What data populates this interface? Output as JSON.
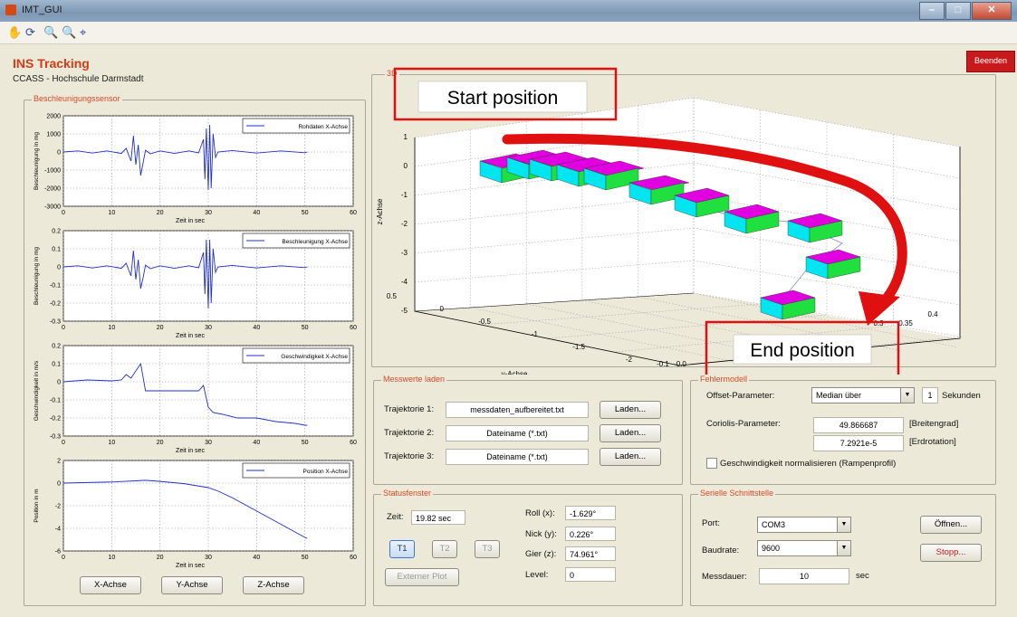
{
  "window": {
    "title": "IMT_GUI",
    "buttons": [
      "–",
      "□",
      "✕"
    ]
  },
  "toolbar": {
    "tools": [
      "pan-tool",
      "rotate-tool",
      "zoom-in-tool",
      "zoom-out-tool",
      "data-cursor-tool"
    ]
  },
  "app": {
    "title": "INS Tracking",
    "subtitle": "CCASS - Hochschule Darmstadt",
    "beenden_label": "Beenden"
  },
  "sensor_panel": {
    "label": "Beschleunigungssensor",
    "buttons": [
      "X-Achse",
      "Y-Achse",
      "Z-Achse"
    ]
  },
  "chart_data": [
    {
      "type": "line",
      "legend": "Rohdaten X-Achse",
      "xlabel": "Zeit in sec",
      "ylabel": "Beschleunigung in mg",
      "xlim": [
        0,
        60
      ],
      "ylim": [
        -3000,
        2000
      ],
      "xticks": [
        0,
        10,
        20,
        30,
        40,
        50,
        60
      ],
      "yticks": [
        2000,
        1000,
        0,
        -1000,
        -2000,
        -3000
      ],
      "grid": true,
      "x": [
        0,
        3,
        6,
        9,
        12,
        13,
        14,
        14.5,
        15,
        15.5,
        16,
        16.5,
        17,
        18,
        20,
        23,
        26,
        28,
        29,
        29.3,
        29.6,
        30,
        30.3,
        30.6,
        31,
        31.5,
        32,
        35,
        40,
        45,
        50,
        50.5
      ],
      "y": [
        0,
        60,
        -60,
        60,
        -80,
        200,
        -500,
        900,
        -700,
        400,
        -1300,
        -600,
        100,
        -100,
        60,
        -80,
        60,
        -50,
        700,
        -1500,
        1300,
        -2100,
        1500,
        -2000,
        1000,
        -300,
        0,
        80,
        -60,
        60,
        -40,
        0
      ]
    },
    {
      "type": "line",
      "legend": "Beschleunigung X-Achse",
      "xlabel": "Zeit in sec",
      "ylabel": "Beschleunigung in mg",
      "xlim": [
        0,
        60
      ],
      "ylim": [
        -0.3,
        0.2
      ],
      "xticks": [
        0,
        10,
        20,
        30,
        40,
        50,
        60
      ],
      "yticks": [
        0.2,
        0.1,
        0,
        -0.1,
        -0.2,
        -0.3
      ],
      "grid": true,
      "x": [
        0,
        3,
        6,
        9,
        12,
        13,
        14,
        14.5,
        15,
        15.5,
        16,
        16.5,
        17,
        18,
        20,
        23,
        26,
        28,
        29,
        29.3,
        29.6,
        30,
        30.3,
        30.6,
        31,
        31.5,
        32,
        35,
        40,
        45,
        50,
        50.5
      ],
      "y": [
        0,
        0.006,
        -0.006,
        0.006,
        -0.008,
        0.02,
        -0.05,
        0.09,
        -0.07,
        0.04,
        -0.12,
        -0.06,
        0.01,
        -0.01,
        0.006,
        -0.008,
        0.006,
        -0.005,
        0.08,
        -0.15,
        0.15,
        -0.23,
        0.15,
        -0.2,
        0.1,
        -0.03,
        0,
        0.008,
        -0.006,
        0.006,
        -0.004,
        0
      ]
    },
    {
      "type": "line",
      "legend": "Geschwindigkeit X-Achse",
      "xlabel": "Zeit in sec",
      "ylabel": "Geschwindigkeit in m/s",
      "xlim": [
        0,
        60
      ],
      "ylim": [
        -0.3,
        0.2
      ],
      "xticks": [
        0,
        10,
        20,
        30,
        40,
        50,
        60
      ],
      "yticks": [
        0.2,
        0.1,
        0,
        -0.1,
        -0.2,
        -0.3
      ],
      "grid": true,
      "x": [
        0,
        5,
        10,
        12,
        13,
        14,
        15,
        16,
        17,
        20,
        25,
        28,
        29,
        30,
        31,
        33,
        36,
        40,
        44,
        48,
        50,
        50.5
      ],
      "y": [
        0,
        0.01,
        0.005,
        0.01,
        0.04,
        0.02,
        0.06,
        0.1,
        -0.05,
        -0.05,
        -0.05,
        -0.05,
        -0.02,
        -0.14,
        -0.17,
        -0.18,
        -0.2,
        -0.2,
        -0.22,
        -0.23,
        -0.24,
        -0.24
      ]
    },
    {
      "type": "line",
      "legend": "Position X-Achse",
      "xlabel": "Zeit in sec",
      "ylabel": "Position in m",
      "xlim": [
        0,
        60
      ],
      "ylim": [
        -6,
        2
      ],
      "xticks": [
        0,
        10,
        20,
        30,
        40,
        50,
        60
      ],
      "yticks": [
        2,
        0,
        -2,
        -4,
        -6
      ],
      "grid": true,
      "x": [
        0,
        5,
        10,
        15,
        17,
        20,
        25,
        30,
        32,
        35,
        38,
        41,
        44,
        47,
        50,
        50.5
      ],
      "y": [
        0,
        0.05,
        0.1,
        0.2,
        0.25,
        0.15,
        -0.05,
        -0.4,
        -0.7,
        -1.3,
        -2.0,
        -2.7,
        -3.4,
        -4.1,
        -4.8,
        -4.9
      ]
    },
    {
      "type": "scatter",
      "panel_label": "3D",
      "xlabel": "y-Achse",
      "zlabel": "z-Achse",
      "zticks": [
        1,
        0,
        -1,
        -2,
        -3,
        -4,
        -5
      ],
      "yticks": [
        0.5,
        0,
        -0.5,
        -1,
        -1.5,
        -2
      ],
      "xticks": [
        -0.1,
        0.3,
        0.35,
        0.4
      ],
      "partial_xtick": "-0.0",
      "annotations": [
        "Start position",
        "End position"
      ]
    }
  ],
  "measurements_panel": {
    "label": "Messwerte laden",
    "rows": [
      {
        "label": "Trajektorie 1:",
        "value": "messdaten_aufbereitet.txt",
        "button": "Laden..."
      },
      {
        "label": "Trajektorie 2:",
        "value": "Dateiname (*.txt)",
        "button": "Laden..."
      },
      {
        "label": "Trajektorie 3:",
        "value": "Dateiname (*.txt)",
        "button": "Laden..."
      }
    ]
  },
  "error_panel": {
    "label": "Fehlermodell",
    "offset_label": "Offset-Parameter:",
    "offset_mode": "Median über",
    "offset_seconds": "1",
    "seconds_label": "Sekunden",
    "coriolis_label": "Coriolis-Parameter:",
    "coriolis_lat": "49.866687",
    "coriolis_lat_unit": "[Breitengrad]",
    "coriolis_rot": "7.2921e-5",
    "coriolis_rot_unit": "[Erdrotation]",
    "normalize_label": "Geschwindigkeit normalisieren (Rampenprofil)"
  },
  "status_panel": {
    "label": "Statusfenster",
    "time_label": "Zeit:",
    "time_value": "19.82 sec",
    "roll_label": "Roll (x):",
    "roll_value": "-1.629°",
    "nick_label": "Nick (y):",
    "nick_value": "0.226°",
    "gier_label": "Gier (z):",
    "gier_value": "74.961°",
    "level_label": "Level:",
    "level_value": "0",
    "t_buttons": [
      "T1",
      "T2",
      "T3"
    ],
    "external_plot": "Externer Plot"
  },
  "serial_panel": {
    "label": "Serielle Schnittstelle",
    "port_label": "Port:",
    "port_value": "COM3",
    "baud_label": "Baudrate:",
    "baud_value": "9600",
    "duration_label": "Messdauer:",
    "duration_value": "10",
    "duration_unit": "sec",
    "open_button": "Öffnen...",
    "stop_button": "Stopp..."
  },
  "colors": {
    "accent_red": "#d83a18",
    "line_blue": "#1f2fd0",
    "annotation_red": "#e01010",
    "cyan": "#00e5f0",
    "magenta": "#e000e0",
    "green": "#20e040"
  }
}
